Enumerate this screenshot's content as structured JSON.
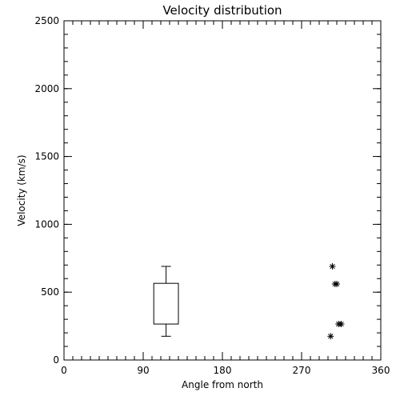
{
  "chart_data": {
    "type": "box",
    "title": "Velocity distribution",
    "xlabel": "Angle from north",
    "ylabel": "Velocity (km/s)",
    "xlim": [
      0,
      360
    ],
    "ylim": [
      0,
      2500
    ],
    "xticks": [
      0,
      90,
      180,
      270,
      360
    ],
    "xtick_labels": [
      "0",
      "90",
      "180",
      "270",
      "360"
    ],
    "x_minor_step": 10,
    "yticks": [
      0,
      500,
      1000,
      1500,
      2000,
      2500
    ],
    "ytick_labels": [
      "0",
      "500",
      "1000",
      "1500",
      "2000",
      "2500"
    ],
    "y_minor_step": 100,
    "grid": false,
    "box": {
      "x_range": [
        102,
        130
      ],
      "whisker_x": 116,
      "whisker_low": 175,
      "q1": 265,
      "q3": 565,
      "whisker_high": 690
    },
    "points": [
      {
        "x": 305,
        "y": 690
      },
      {
        "x": 308,
        "y": 560
      },
      {
        "x": 310,
        "y": 560
      },
      {
        "x": 312,
        "y": 265
      },
      {
        "x": 315,
        "y": 265
      },
      {
        "x": 303,
        "y": 175
      }
    ]
  }
}
